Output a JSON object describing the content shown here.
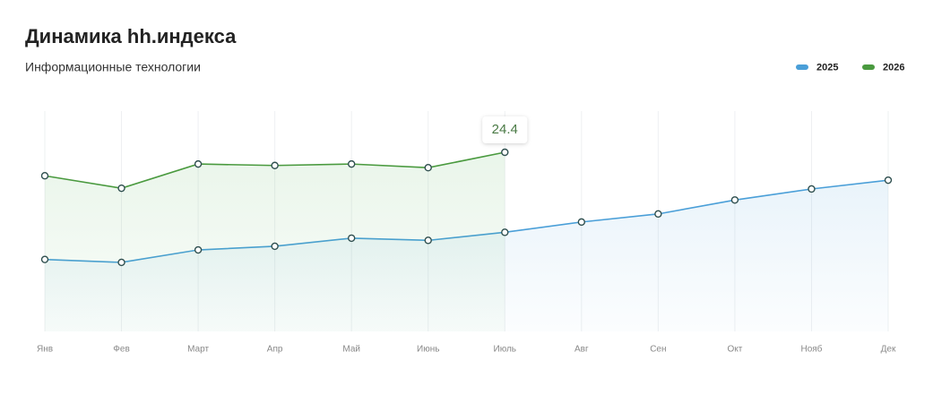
{
  "chart_data": {
    "type": "line",
    "title": "Динамика hh.индекса",
    "subtitle": "Информационные технологии",
    "categories": [
      "Янв",
      "Фев",
      "Март",
      "Апр",
      "Май",
      "Июнь",
      "Июль",
      "Авг",
      "Сен",
      "Окт",
      "Нояб",
      "Дек"
    ],
    "series": [
      {
        "name": "2025",
        "color": "#4a9fd8",
        "values": [
          9.8,
          9.4,
          11.1,
          11.6,
          12.7,
          12.4,
          13.5,
          14.9,
          16.0,
          17.9,
          19.4,
          20.6
        ]
      },
      {
        "name": "2026",
        "color": "#4a9a3f",
        "values": [
          21.2,
          19.5,
          22.8,
          22.6,
          22.8,
          22.3,
          24.4,
          null,
          null,
          null,
          null,
          null
        ]
      }
    ],
    "ylim": [
      0,
      30.5
    ],
    "grid": true,
    "legend": "top-right"
  }
}
